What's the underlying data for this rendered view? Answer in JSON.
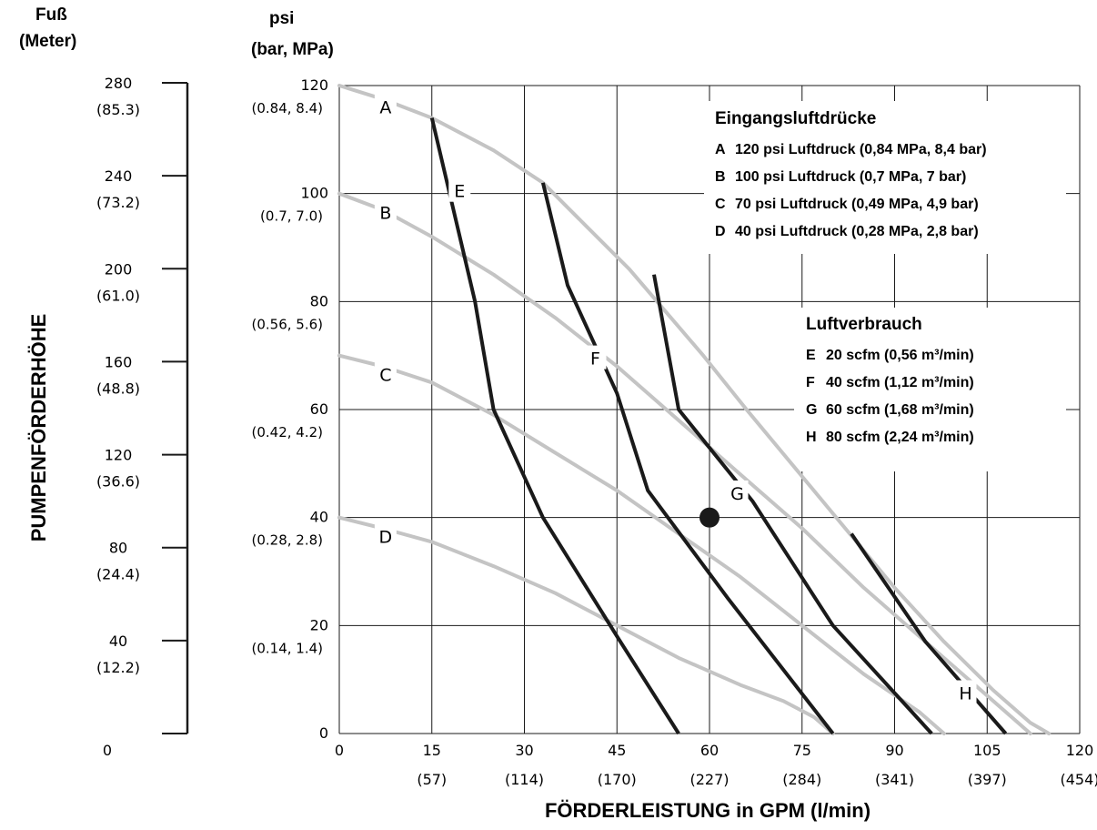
{
  "header": {
    "left_unit_line1": "Fuß",
    "left_unit_line2": "(Meter)",
    "psi_line1": "psi",
    "psi_line2": "(bar, MPa)"
  },
  "chart_data": {
    "type": "line",
    "xlabel": "FÖRDERLEISTUNG in GPM (l/min)",
    "ylabel": "PUMPENFÖRDERHÖHE",
    "xlim": [
      0,
      120
    ],
    "ylim": [
      0,
      120
    ],
    "grid": true,
    "x_ticks": [
      "0",
      "15",
      "30",
      "45",
      "60",
      "75",
      "90",
      "105",
      "120"
    ],
    "x_ticks_secondary": [
      "(57)",
      "(114)",
      "(170)",
      "(227)",
      "(284)",
      "(341)",
      "(397)",
      "(454)"
    ],
    "y_ticks": [
      {
        "value": 0,
        "label": "0",
        "sub": ""
      },
      {
        "value": 20,
        "label": "20",
        "sub": "(0.14, 1.4)"
      },
      {
        "value": 40,
        "label": "40",
        "sub": "(0.28, 2.8)"
      },
      {
        "value": 60,
        "label": "60",
        "sub": "(0.42, 4.2)"
      },
      {
        "value": 80,
        "label": "80",
        "sub": "(0.56,  5.6)"
      },
      {
        "value": 100,
        "label": "100",
        "sub": "(0.7, 7.0)"
      },
      {
        "value": 120,
        "label": "120",
        "sub": "(0.84, 8.4)"
      }
    ],
    "feet_scale": [
      {
        "label": "280",
        "sub": "(85.3)"
      },
      {
        "label": "240",
        "sub": "(73.2)"
      },
      {
        "label": "200",
        "sub": "(61.0)"
      },
      {
        "label": "160",
        "sub": "(48.8)"
      },
      {
        "label": "120",
        "sub": "(36.6)"
      },
      {
        "label": "80",
        "sub": "(24.4)"
      },
      {
        "label": "40",
        "sub": "(12.2)"
      },
      {
        "label": "0",
        "sub": ""
      }
    ],
    "legend_pressure_title": "Eingangsluftdrücke",
    "legend_pressure": [
      {
        "letter": "A",
        "text": "120 psi Luftdruck (0,84 MPa, 8,4 bar)"
      },
      {
        "letter": "B",
        "text": "100 psi Luftdruck (0,7 MPa, 7 bar)"
      },
      {
        "letter": "C",
        "text": "70 psi Luftdruck (0,49 MPa, 4,9 bar)"
      },
      {
        "letter": "D",
        "text": "40 psi Luftdruck (0,28 MPa, 2,8 bar)"
      }
    ],
    "legend_air_title": "Luftverbrauch",
    "legend_air": [
      {
        "letter": "E",
        "text": "20 scfm (0,56 m³/min)"
      },
      {
        "letter": "F",
        "text": "40 scfm (1,12 m³/min)"
      },
      {
        "letter": "G",
        "text": "60 scfm (1,68 m³/min)"
      },
      {
        "letter": "H",
        "text": "80 scfm (2,24 m³/min)"
      }
    ],
    "pressure_series": [
      {
        "name": "A",
        "color": "#c4c4c4",
        "points": [
          [
            0,
            120
          ],
          [
            7,
            117.5
          ],
          [
            15,
            114
          ],
          [
            25,
            108
          ],
          [
            33,
            102
          ],
          [
            40,
            94
          ],
          [
            47,
            86
          ],
          [
            53,
            78
          ],
          [
            59,
            70
          ],
          [
            66,
            60
          ],
          [
            74,
            49
          ],
          [
            82,
            38
          ],
          [
            90,
            27
          ],
          [
            98,
            17
          ],
          [
            106,
            8
          ],
          [
            112,
            2
          ],
          [
            115,
            0
          ]
        ]
      },
      {
        "name": "B",
        "color": "#c4c4c4",
        "points": [
          [
            0,
            100
          ],
          [
            7,
            97
          ],
          [
            15,
            92
          ],
          [
            25,
            85
          ],
          [
            35,
            77
          ],
          [
            45,
            68
          ],
          [
            55,
            58
          ],
          [
            65,
            48
          ],
          [
            75,
            38
          ],
          [
            85,
            27
          ],
          [
            95,
            17
          ],
          [
            104,
            8
          ],
          [
            110,
            2
          ],
          [
            112,
            0
          ]
        ]
      },
      {
        "name": "C",
        "color": "#c4c4c4",
        "points": [
          [
            0,
            70
          ],
          [
            7,
            68
          ],
          [
            15,
            65
          ],
          [
            25,
            59
          ],
          [
            35,
            52
          ],
          [
            45,
            45
          ],
          [
            55,
            37
          ],
          [
            65,
            29
          ],
          [
            75,
            20
          ],
          [
            85,
            11
          ],
          [
            94,
            4
          ],
          [
            98,
            0
          ]
        ]
      },
      {
        "name": "D",
        "color": "#c4c4c4",
        "points": [
          [
            0,
            40
          ],
          [
            7,
            38
          ],
          [
            15,
            35.5
          ],
          [
            25,
            31
          ],
          [
            35,
            26
          ],
          [
            45,
            20
          ],
          [
            55,
            14
          ],
          [
            65,
            9
          ],
          [
            72,
            6
          ],
          [
            77,
            3
          ],
          [
            80,
            0
          ]
        ]
      }
    ],
    "air_series": [
      {
        "name": "E",
        "color": "#1a1a1a",
        "points": [
          [
            15,
            114
          ],
          [
            22,
            80
          ],
          [
            25,
            60
          ],
          [
            33,
            40
          ],
          [
            45,
            18
          ],
          [
            55,
            0
          ]
        ]
      },
      {
        "name": "F",
        "color": "#1a1a1a",
        "points": [
          [
            33,
            102
          ],
          [
            37,
            83
          ],
          [
            45,
            63
          ],
          [
            50,
            45
          ],
          [
            63,
            25
          ],
          [
            80,
            0
          ]
        ]
      },
      {
        "name": "G",
        "color": "#1a1a1a",
        "points": [
          [
            51,
            85
          ],
          [
            55,
            60
          ],
          [
            67,
            43
          ],
          [
            80,
            20
          ],
          [
            96,
            0
          ]
        ]
      },
      {
        "name": "H",
        "color": "#1a1a1a",
        "points": [
          [
            83,
            37
          ],
          [
            95,
            17
          ],
          [
            108,
            0
          ]
        ]
      }
    ],
    "series_labels": [
      {
        "text": "A",
        "x": 7.5,
        "y": 116
      },
      {
        "text": "B",
        "x": 7.5,
        "y": 96.5
      },
      {
        "text": "C",
        "x": 7.5,
        "y": 66.5
      },
      {
        "text": "D",
        "x": 7.5,
        "y": 36.5
      },
      {
        "text": "E",
        "x": 19.5,
        "y": 100.5
      },
      {
        "text": "F",
        "x": 41.5,
        "y": 69.5
      },
      {
        "text": "G",
        "x": 64.5,
        "y": 44.5
      },
      {
        "text": "H",
        "x": 101.5,
        "y": 7.5
      }
    ],
    "marker": {
      "x": 60,
      "y": 40
    }
  }
}
